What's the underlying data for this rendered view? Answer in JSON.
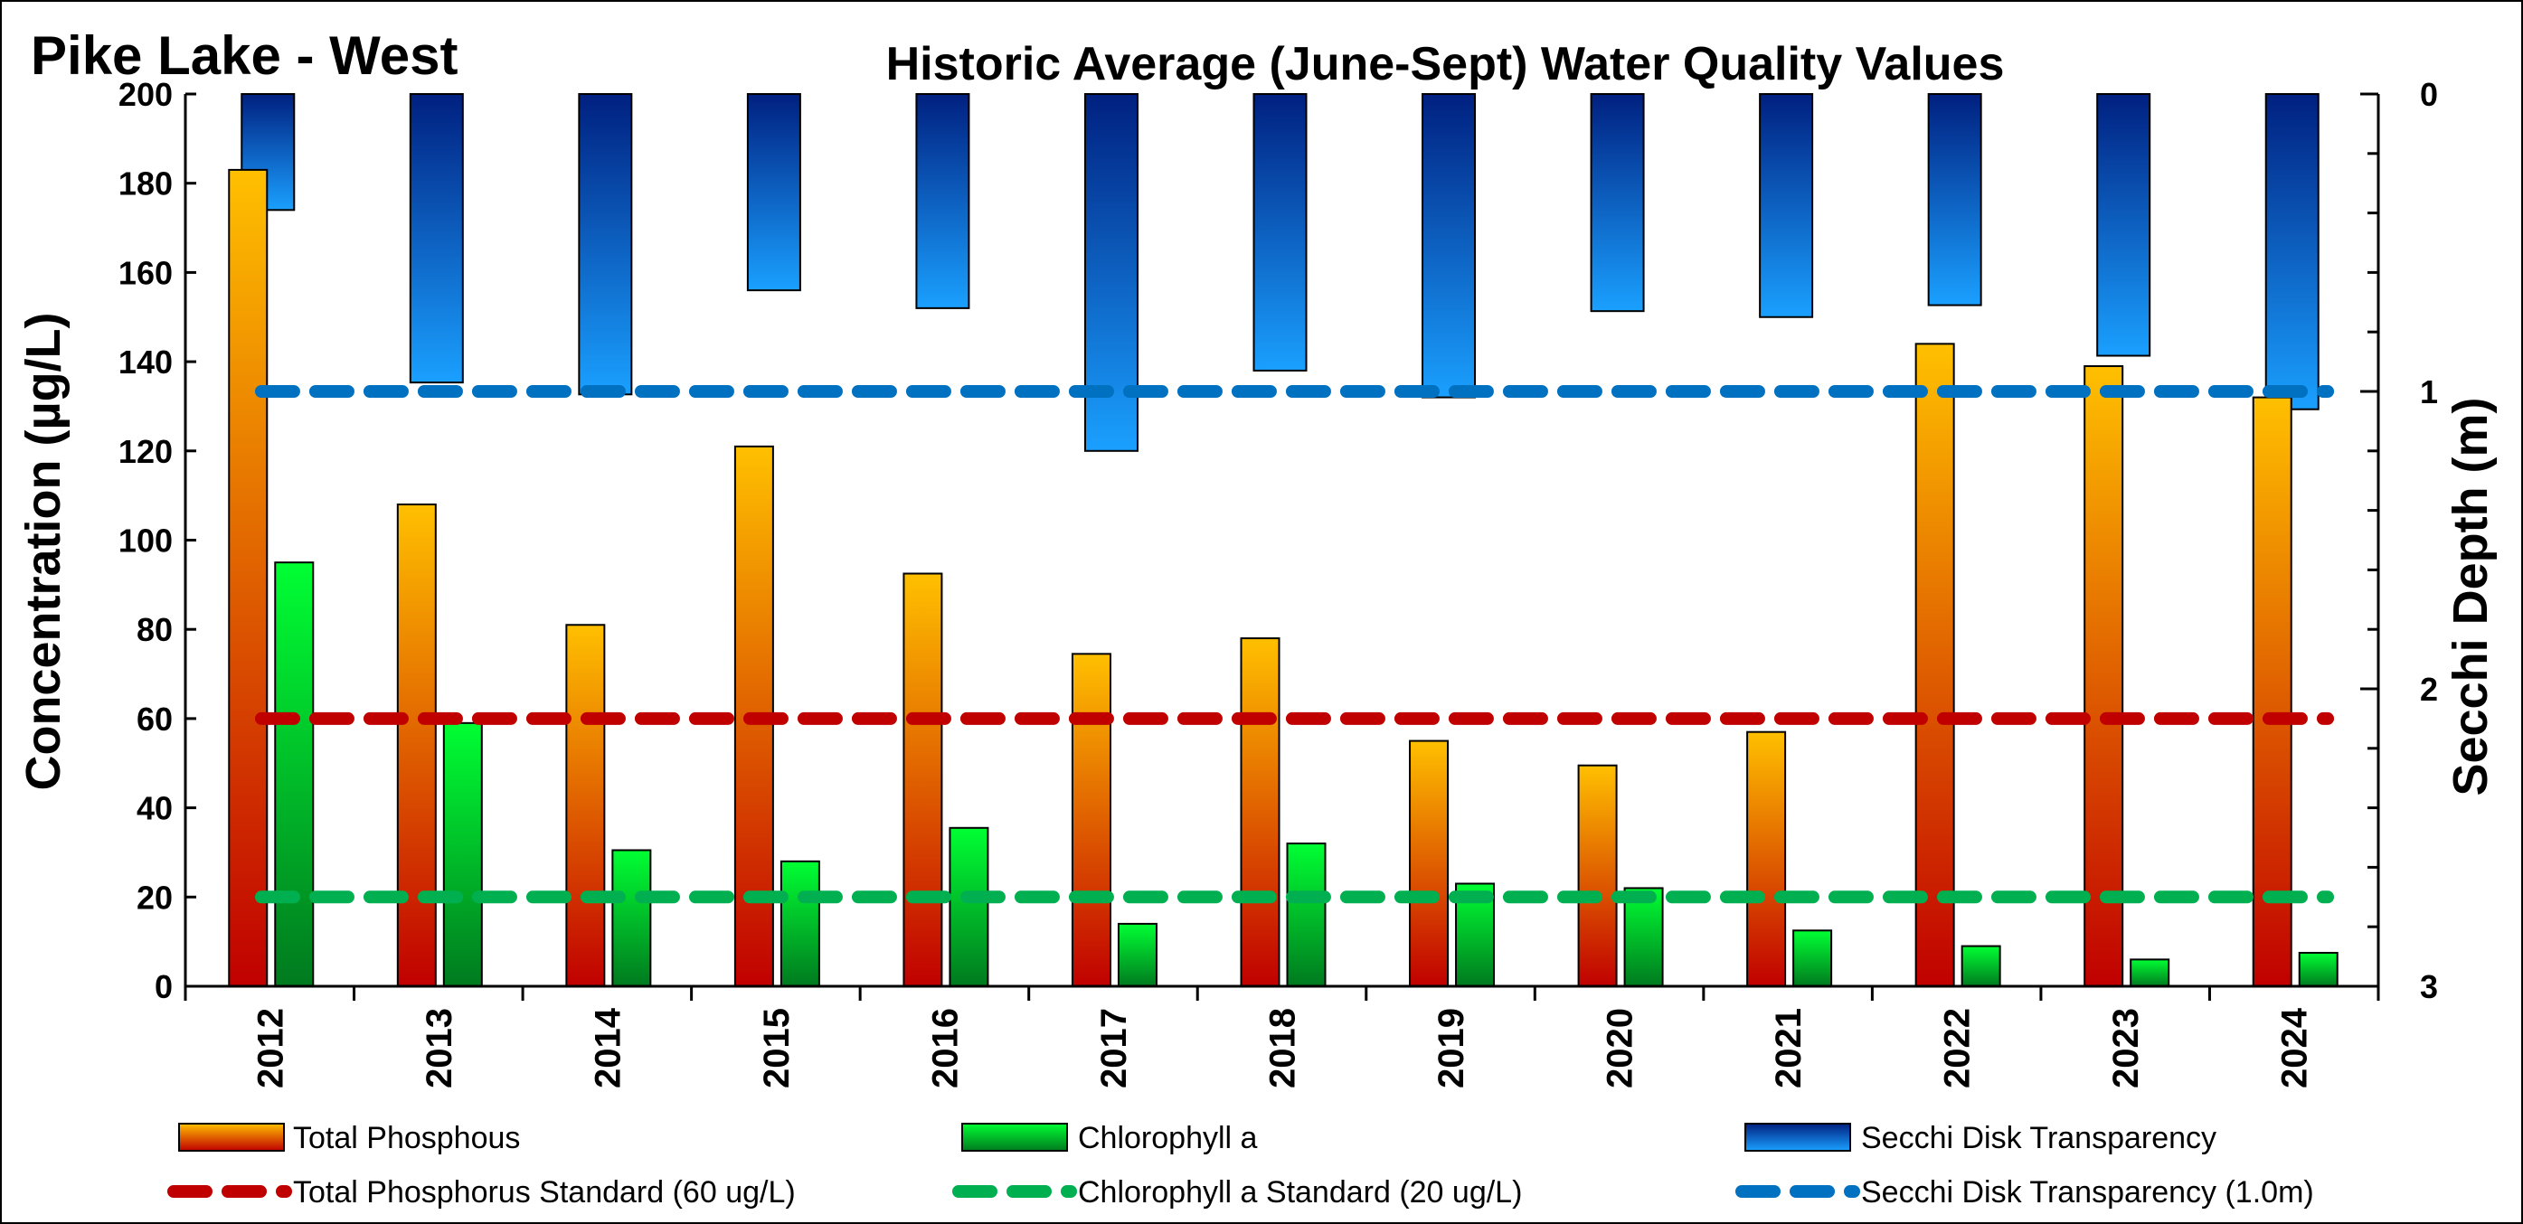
{
  "chart_data": {
    "type": "bar",
    "lake_name": "Pike Lake - West",
    "title": "Historic Average (June-Sept) Water Quality Values",
    "ylabel": "Concentration (µg/L)",
    "y2label": "Secchi Depth (m)",
    "ylim": [
      0,
      200
    ],
    "y2lim": [
      0,
      3
    ],
    "y2_inverted": true,
    "yticks": [
      "0",
      "20",
      "40",
      "60",
      "80",
      "100",
      "120",
      "140",
      "160",
      "180",
      "200"
    ],
    "y2ticks": [
      "0",
      "1",
      "2",
      "3"
    ],
    "categories": [
      "2012",
      "2013",
      "2014",
      "2015",
      "2016",
      "2017",
      "2018",
      "2019",
      "2020",
      "2021",
      "2022",
      "2023",
      "2024"
    ],
    "series": [
      {
        "name": "Total Phosphous",
        "axis": "left",
        "values": [
          183,
          108,
          81,
          121,
          92.5,
          74.5,
          78,
          55,
          49.5,
          57,
          144,
          139,
          132
        ]
      },
      {
        "name": "Chlorophyll a",
        "axis": "left",
        "values": [
          95,
          59,
          30.5,
          28,
          35.5,
          14,
          32,
          23,
          22,
          12.5,
          9,
          6,
          7.5
        ]
      },
      {
        "name": "Secchi Disk Transparency",
        "axis": "right",
        "values": [
          0.39,
          0.97,
          1.01,
          0.66,
          0.72,
          1.2,
          0.93,
          1.02,
          0.73,
          0.75,
          0.71,
          0.88,
          1.06
        ]
      }
    ],
    "reference_lines": [
      {
        "name": "Total Phosphorus Standard (60 ug/L)",
        "axis": "left",
        "value": 60,
        "color": "#c00000"
      },
      {
        "name": "Chlorophyll a Standard (20 ug/L)",
        "axis": "left",
        "value": 20,
        "color": "#00b050"
      },
      {
        "name": "Secchi Disk Transparency (1.0m)",
        "axis": "right",
        "value": 1.0,
        "color": "#0070c0"
      }
    ],
    "legend_position": "bottom",
    "colors": {
      "phosphorus_top": "#ffc000",
      "phosphorus_bottom": "#c00000",
      "chlorophyll_top": "#00ff33",
      "chlorophyll_bottom": "#007a1f",
      "secchi_top": "#002080",
      "secchi_bottom": "#1aa0ff"
    }
  }
}
